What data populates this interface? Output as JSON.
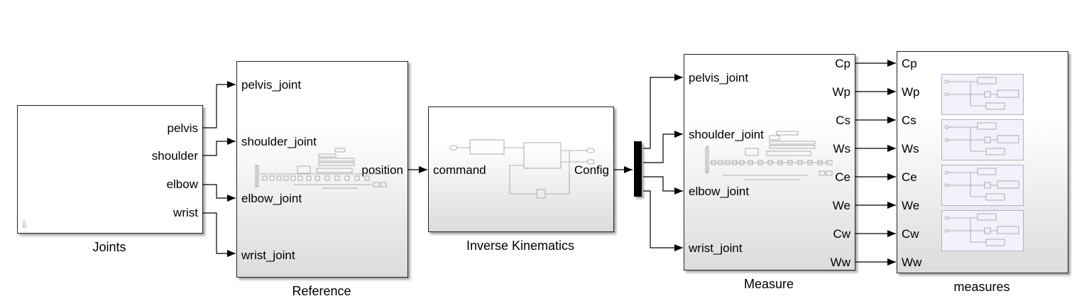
{
  "blocks": {
    "joints": {
      "name": "Joints",
      "outputs": [
        "pelvis",
        "shoulder",
        "elbow",
        "wrist"
      ]
    },
    "reference": {
      "name": "Reference",
      "inputs": [
        "pelvis_joint",
        "shoulder_joint",
        "elbow_joint",
        "wrist_joint"
      ],
      "output": "position"
    },
    "ik": {
      "name": "Inverse Kinematics",
      "input": "command",
      "output": "Config"
    },
    "measure": {
      "name": "Measure",
      "inputs": [
        "pelvis_joint",
        "shoulder_joint",
        "elbow_joint",
        "wrist_joint"
      ],
      "outputs": [
        "Cp",
        "Wp",
        "Cs",
        "Ws",
        "Ce",
        "We",
        "Cw",
        "Ww"
      ]
    },
    "measures": {
      "name": "measures",
      "inputs": [
        "Cp",
        "Wp",
        "Cs",
        "Ws",
        "Ce",
        "We",
        "Cw",
        "Ww"
      ]
    }
  },
  "colors": {
    "block_border": "#222222",
    "gradient_bottom": "#dcdcdc",
    "scope_fill": "#f2f2fb",
    "scope_border": "#b0b0c8",
    "wire": "#000000"
  },
  "icons": {
    "joints_badge": "down-arrow-icon",
    "mux": "mux-bar"
  }
}
